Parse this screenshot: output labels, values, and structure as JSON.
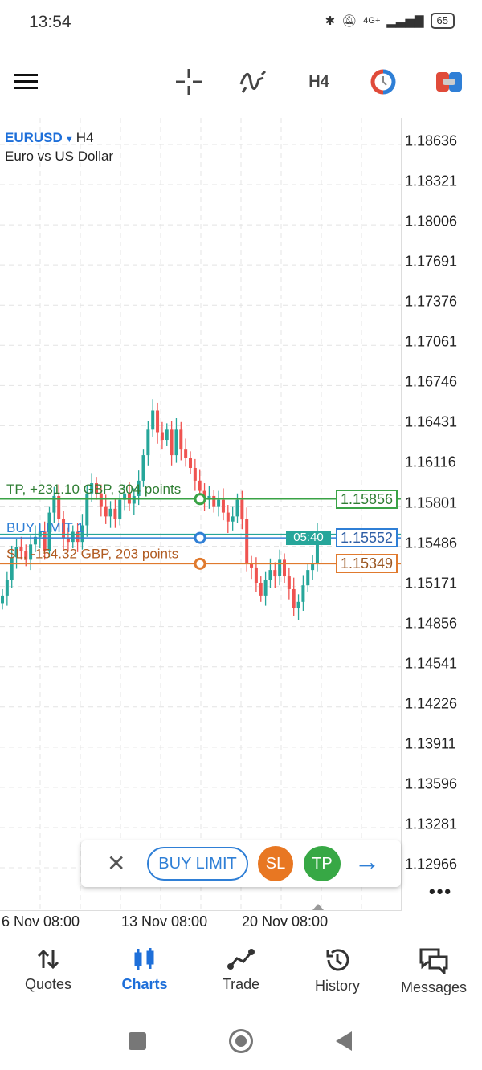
{
  "status": {
    "time": "13:54",
    "battery": "65",
    "network": "4G+"
  },
  "toolbar": {
    "timeframe": "H4"
  },
  "chart": {
    "symbol": "EURUSD",
    "timeframe": "H4",
    "description": "Euro vs US Dollar",
    "price_ticks": [
      "1.18636",
      "1.18321",
      "1.18006",
      "1.17691",
      "1.17376",
      "1.17061",
      "1.16746",
      "1.16431",
      "1.16116",
      "1.15801",
      "1.15486",
      "1.15171",
      "1.14856",
      "1.14541",
      "1.14226",
      "1.13911",
      "1.13596",
      "1.13281",
      "1.12966"
    ],
    "time_labels": [
      "6 Nov 08:00",
      "13 Nov 08:00",
      "20 Nov 08:00"
    ],
    "countdown": "05:40",
    "bull_color": "#26a69a",
    "bear_color": "#ef5350",
    "closes": [
      1.151,
      1.1522,
      1.154,
      1.1548,
      1.1545,
      1.1538,
      1.155,
      1.1556,
      1.156,
      1.1545,
      1.1575,
      1.1588,
      1.157,
      1.1555,
      1.1552,
      1.156,
      1.1552,
      1.1565,
      1.159,
      1.1598,
      1.159,
      1.158,
      1.1572,
      1.1578,
      1.157,
      1.1585,
      1.159,
      1.1582,
      1.1588,
      1.16,
      1.162,
      1.164,
      1.1655,
      1.1638,
      1.1632,
      1.164,
      1.162,
      1.164,
      1.1625,
      1.1618,
      1.161,
      1.16,
      1.1592,
      1.1585,
      1.1588,
      1.158,
      1.1585,
      1.1575,
      1.1568,
      1.1572,
      1.1585,
      1.157,
      1.1535,
      1.1532,
      1.152,
      1.151,
      1.1522,
      1.153,
      1.1525,
      1.1538,
      1.1525,
      1.1515,
      1.15,
      1.1505,
      1.1518,
      1.153,
      1.1535,
      1.1558
    ],
    "levels": {
      "tp": {
        "price": 1.15856,
        "label": "1.15856",
        "text": "TP, +231.10 GBP, 304 points",
        "color": "#3aa346"
      },
      "order": {
        "price": 1.15552,
        "label": "1.15552",
        "text": "BUY LIMIT 1",
        "color": "#2f7fd6"
      },
      "sl": {
        "price": 1.15349,
        "label": "1.15349",
        "text": "SL, -154.32 GBP, 203 points",
        "color": "#e07a2e"
      }
    }
  },
  "order_bar": {
    "type": "BUY LIMIT",
    "sl": "SL",
    "tp": "TP"
  },
  "nav": [
    {
      "label": "Quotes"
    },
    {
      "label": "Charts",
      "active": true
    },
    {
      "label": "Trade"
    },
    {
      "label": "History"
    },
    {
      "label": "Messages"
    }
  ]
}
